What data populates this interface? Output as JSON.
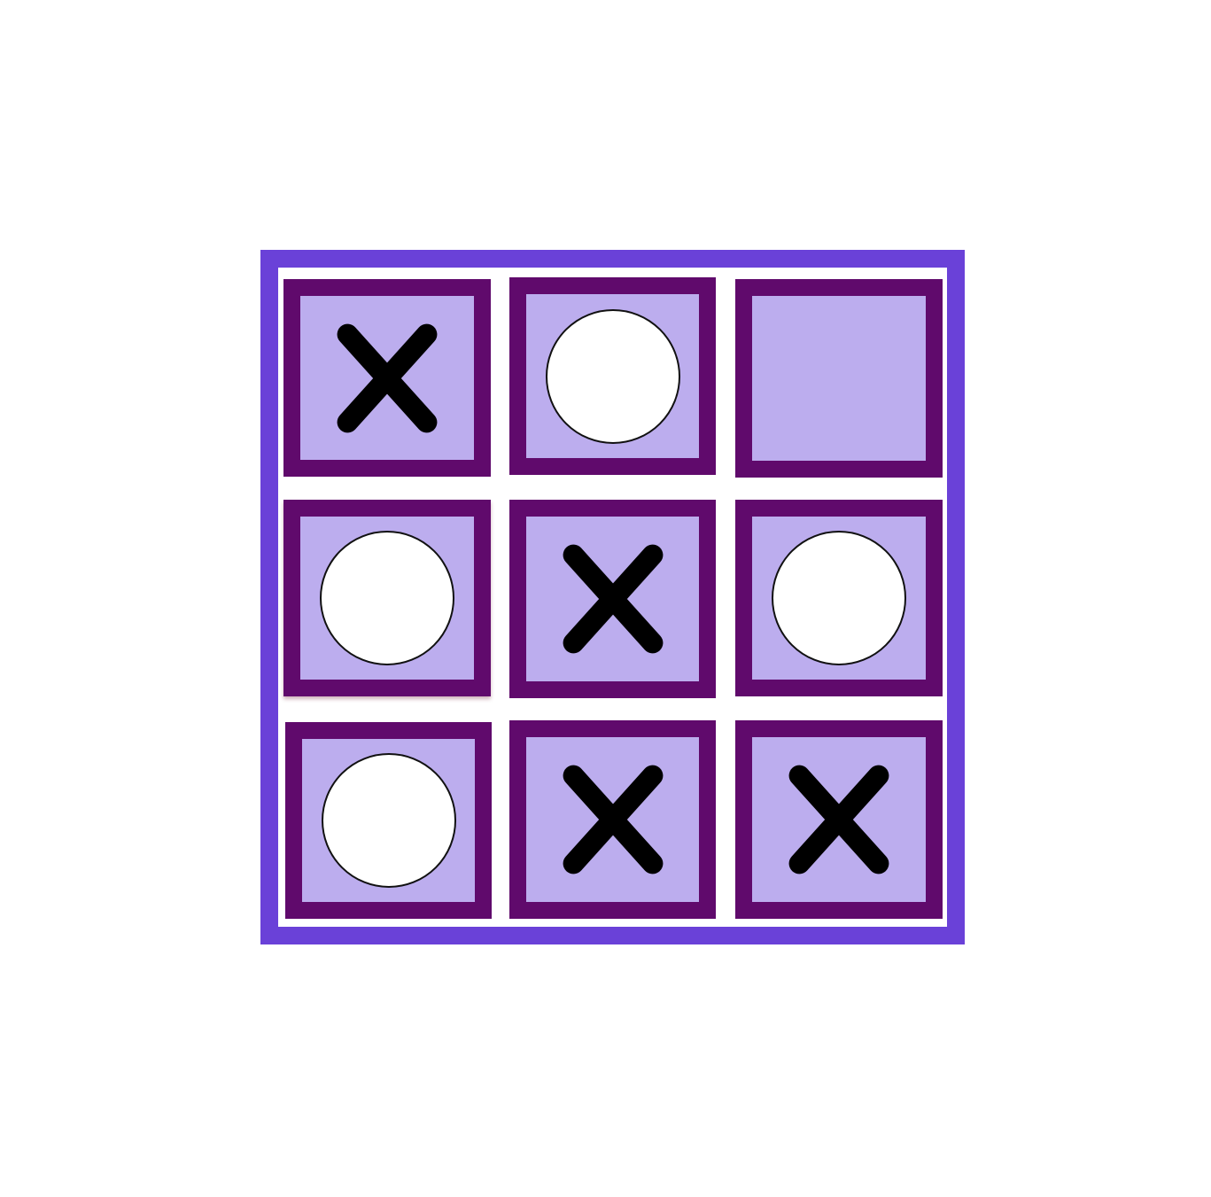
{
  "game": {
    "name": "tic-tac-toe",
    "colors": {
      "frame": "#6a41d8",
      "cell_border": "#600a6c",
      "cell_fill": "#bcadee",
      "x_mark": "#000000",
      "o_fill": "#ffffff"
    },
    "cells": [
      {
        "row": 1,
        "col": 1,
        "mark": "X"
      },
      {
        "row": 1,
        "col": 2,
        "mark": "O"
      },
      {
        "row": 1,
        "col": 3,
        "mark": ""
      },
      {
        "row": 2,
        "col": 1,
        "mark": "O"
      },
      {
        "row": 2,
        "col": 2,
        "mark": "X"
      },
      {
        "row": 2,
        "col": 3,
        "mark": "O"
      },
      {
        "row": 3,
        "col": 1,
        "mark": "O"
      },
      {
        "row": 3,
        "col": 2,
        "mark": "X"
      },
      {
        "row": 3,
        "col": 3,
        "mark": "X"
      }
    ]
  }
}
